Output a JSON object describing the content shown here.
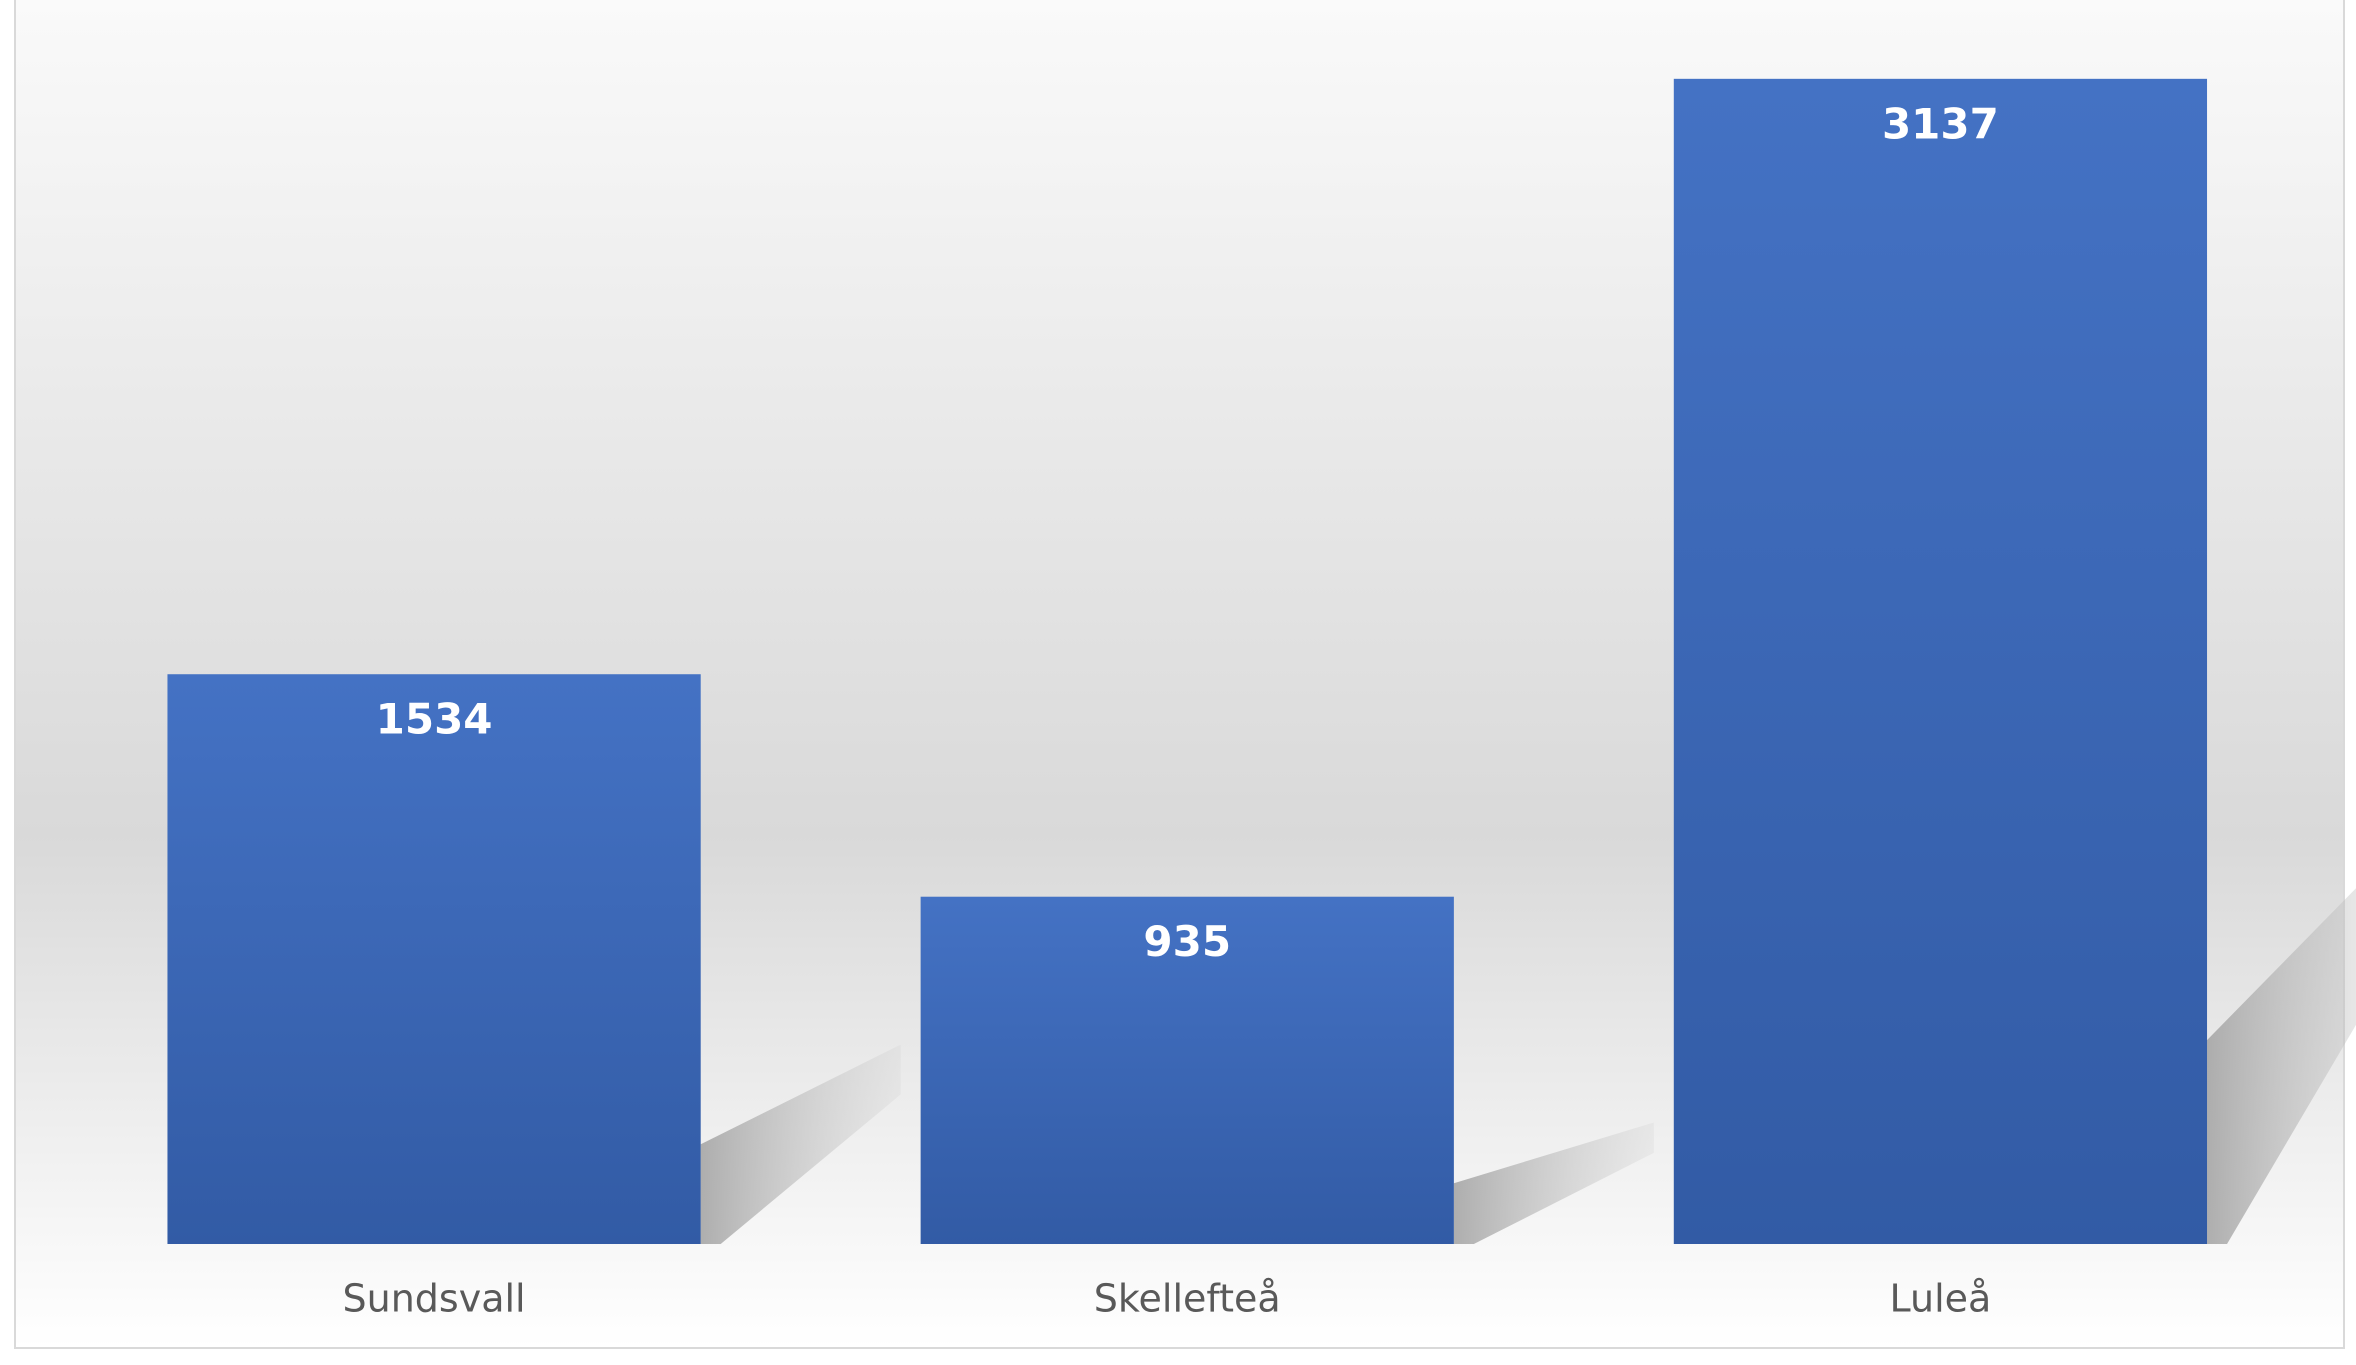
{
  "chart_data": {
    "type": "bar",
    "categories": [
      "Sundsvall",
      "Skellefteå",
      "Luleå"
    ],
    "values": [
      1534,
      935,
      3137
    ],
    "color": "#4472c4",
    "ylim": [
      0,
      3500
    ],
    "data_labels": true
  }
}
